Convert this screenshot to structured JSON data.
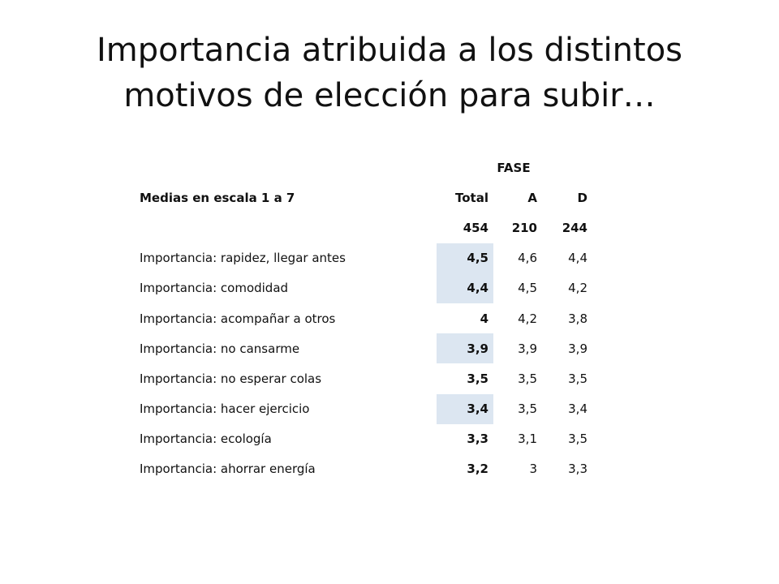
{
  "slide": {
    "title_line1": "Importancia atribuida a los distintos",
    "title_line2": "motivos de elección para subir…"
  },
  "table": {
    "group_header": "FASE",
    "row_label_header": "Medias en escala 1 a 7",
    "columns": [
      "Total",
      "A",
      "D"
    ],
    "base": [
      "454",
      "210",
      "244"
    ],
    "rows": [
      {
        "label": "Importancia: rapidez, llegar antes",
        "total": "4,5",
        "a": "4,6",
        "d": "4,4",
        "highlight": true
      },
      {
        "label": "Importancia: comodidad",
        "total": "4,4",
        "a": "4,5",
        "d": "4,2",
        "highlight": true
      },
      {
        "label": "Importancia: acompañar a otros",
        "total": "4",
        "a": "4,2",
        "d": "3,8",
        "highlight": false
      },
      {
        "label": "Importancia: no cansarme",
        "total": "3,9",
        "a": "3,9",
        "d": "3,9",
        "highlight": true
      },
      {
        "label": "Importancia: no esperar colas",
        "total": "3,5",
        "a": "3,5",
        "d": "3,5",
        "highlight": false
      },
      {
        "label": "Importancia: hacer ejercicio",
        "total": "3,4",
        "a": "3,5",
        "d": "3,4",
        "highlight": true
      },
      {
        "label": "Importancia: ecología",
        "total": "3,3",
        "a": "3,1",
        "d": "3,5",
        "highlight": false
      },
      {
        "label": "Importancia: ahorrar energía",
        "total": "3,2",
        "a": "3",
        "d": "3,3",
        "highlight": false
      }
    ],
    "highlight_color": "#dce6f1"
  }
}
